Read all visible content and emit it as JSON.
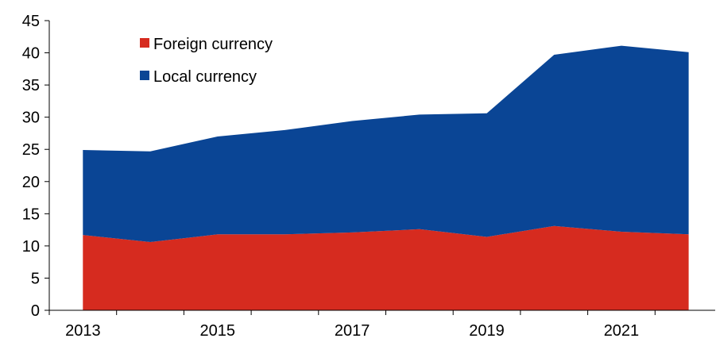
{
  "chart_data": {
    "type": "area",
    "stacked": true,
    "x": [
      2013,
      2014,
      2015,
      2016,
      2017,
      2018,
      2019,
      2020,
      2021,
      2022
    ],
    "series": [
      {
        "name": "Foreign currency",
        "color": "#d62b1f",
        "values": [
          11.7,
          10.6,
          11.8,
          11.8,
          12.1,
          12.6,
          11.4,
          13.1,
          12.2,
          11.8
        ]
      },
      {
        "name": "Local currency",
        "color": "#0a4595",
        "values": [
          13.2,
          14.1,
          15.2,
          16.2,
          17.3,
          17.8,
          19.2,
          26.6,
          28.9,
          28.3
        ]
      }
    ],
    "totals": [
      24.9,
      24.7,
      27.0,
      28.0,
      29.4,
      30.4,
      30.6,
      39.7,
      41.1,
      40.1
    ],
    "x_tick_labels": [
      "2013",
      "2015",
      "2017",
      "2019",
      "2021"
    ],
    "y_tick_labels": [
      "0",
      "5",
      "10",
      "15",
      "20",
      "25",
      "30",
      "35",
      "40",
      "45"
    ],
    "ylim": [
      0,
      45
    ],
    "grid": false,
    "legend_position": "top-left",
    "title": "",
    "xlabel": "",
    "ylabel": ""
  }
}
